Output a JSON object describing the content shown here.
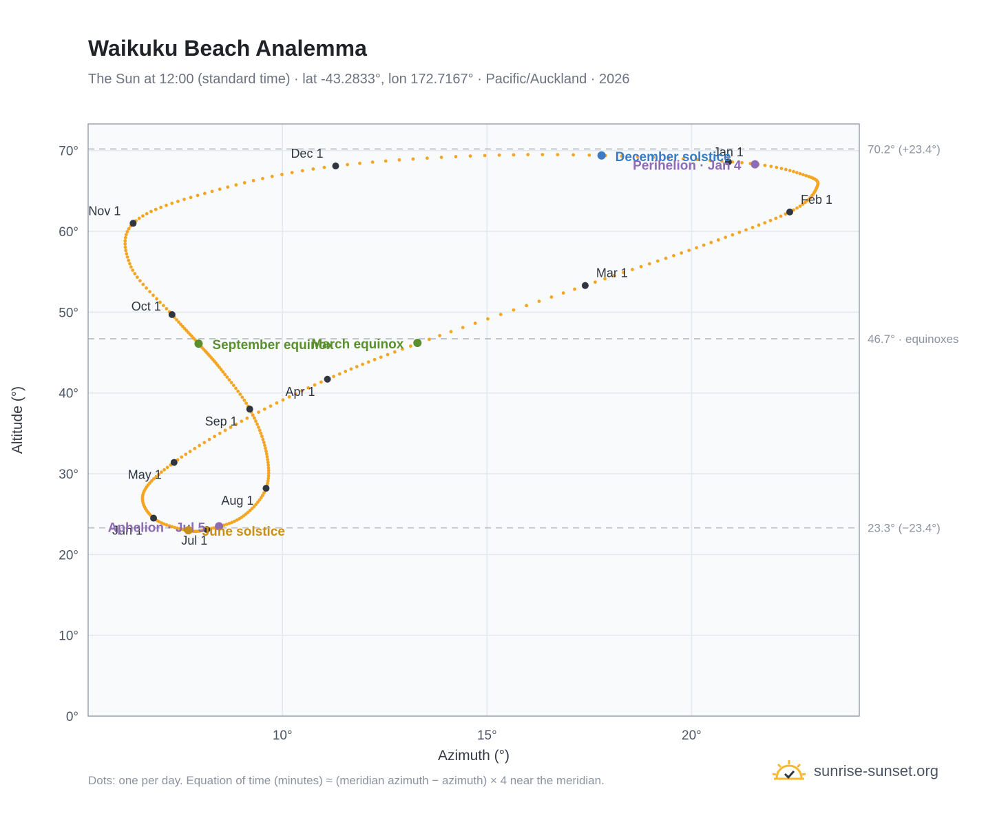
{
  "title": "Waikuku Beach Analemma",
  "subtitle": "The Sun at 12:00 (standard time) · lat -43.2833°, lon 172.7167° · Pacific/Auckland · 2026",
  "footnote": "Dots: one per day. Equation of time (minutes) ≈ (meridian azimuth − azimuth) × 4 near the meridian.",
  "brand": "sunrise-sunset.org",
  "colors": {
    "curve": "#f5a524",
    "month_dot": "#2f3640",
    "december_solstice": "#3b7bc4",
    "june_solstice": "#c79016",
    "equinox": "#5a8f2e",
    "apsis": "#8e6bb5",
    "reference_line": "#b8c0c8",
    "plot_bg": "#f8fafc",
    "grid": "#e3e8ee",
    "frame": "#9aa4b2",
    "axis_text": "#4b5563",
    "ref_text": "#8b93a0"
  },
  "chart_data": {
    "type": "scatter",
    "xlabel": "Azimuth (°)",
    "ylabel": "Altitude (°)",
    "xlim": [
      5.25,
      24.1
    ],
    "ylim": [
      0,
      73.3
    ],
    "xticks": [
      {
        "v": 10,
        "label": "10°"
      },
      {
        "v": 15,
        "label": "15°"
      },
      {
        "v": 20,
        "label": "20°"
      }
    ],
    "yticks": [
      {
        "v": 0,
        "label": "0°"
      },
      {
        "v": 10,
        "label": "10°"
      },
      {
        "v": 20,
        "label": "20°"
      },
      {
        "v": 30,
        "label": "30°"
      },
      {
        "v": 40,
        "label": "40°"
      },
      {
        "v": 50,
        "label": "50°"
      },
      {
        "v": 60,
        "label": "60°"
      },
      {
        "v": 70,
        "label": "70°"
      }
    ],
    "grid": true,
    "reference_lines": [
      {
        "y": 70.2,
        "label": "70.2° (+23.4°)"
      },
      {
        "y": 46.7,
        "label": "46.7° · equinoxes"
      },
      {
        "y": 23.3,
        "label": "23.3° (−23.4°)"
      }
    ],
    "analemma_anchors": [
      {
        "date": "Jan 1",
        "az": 21.0,
        "alt": 68.6
      },
      {
        "date": "Jan 15",
        "az": 22.8,
        "alt": 66.9
      },
      {
        "date": "Jan 22",
        "az": 23.05,
        "alt": 65.3
      },
      {
        "date": "Feb 1",
        "az": 22.4,
        "alt": 62.4
      },
      {
        "date": "Feb 15",
        "az": 20.3,
        "alt": 58.3
      },
      {
        "date": "Mar 1",
        "az": 17.4,
        "alt": 53.3
      },
      {
        "date": "Mar 20",
        "az": 13.35,
        "alt": 46.2
      },
      {
        "date": "Apr 1",
        "az": 11.1,
        "alt": 41.7
      },
      {
        "date": "Apr 15",
        "az": 9.0,
        "alt": 36.5
      },
      {
        "date": "May 1",
        "az": 7.35,
        "alt": 31.4
      },
      {
        "date": "May 15",
        "az": 6.6,
        "alt": 27.6
      },
      {
        "date": "Jun 1",
        "az": 6.85,
        "alt": 24.5
      },
      {
        "date": "Jun 21",
        "az": 7.65,
        "alt": 23.0
      },
      {
        "date": "Jul 1",
        "az": 8.15,
        "alt": 23.1
      },
      {
        "date": "Jul 15",
        "az": 9.0,
        "alt": 24.6
      },
      {
        "date": "Aug 1",
        "az": 9.6,
        "alt": 28.2
      },
      {
        "date": "Aug 15",
        "az": 9.6,
        "alt": 32.8
      },
      {
        "date": "Sep 1",
        "az": 9.2,
        "alt": 38.0
      },
      {
        "date": "Sep 15",
        "az": 8.5,
        "alt": 42.9
      },
      {
        "date": "Sep 23",
        "az": 7.95,
        "alt": 46.1
      },
      {
        "date": "Oct 1",
        "az": 7.3,
        "alt": 49.7
      },
      {
        "date": "Oct 15",
        "az": 6.3,
        "alt": 55.6
      },
      {
        "date": "Nov 1",
        "az": 6.35,
        "alt": 61.0
      },
      {
        "date": "Nov 15",
        "az": 8.1,
        "alt": 64.7
      },
      {
        "date": "Dec 1",
        "az": 11.3,
        "alt": 68.1
      },
      {
        "date": "Dec 21",
        "az": 16.0,
        "alt": 69.5
      },
      {
        "date": "Jan 1",
        "az": 21.0,
        "alt": 68.6
      }
    ],
    "month_markers": [
      {
        "label": "Jan 1",
        "az": 20.9,
        "alt": 68.6,
        "lx": 0,
        "ly": -8,
        "anchor": "middle"
      },
      {
        "label": "Feb 1",
        "az": 22.4,
        "alt": 62.4,
        "lx": 16,
        "ly": -12,
        "anchor": "start"
      },
      {
        "label": "Mar 1",
        "az": 17.4,
        "alt": 53.3,
        "lx": 16,
        "ly": -12,
        "anchor": "start"
      },
      {
        "label": "Apr 1",
        "az": 11.1,
        "alt": 41.7,
        "lx": -18,
        "ly": 24,
        "anchor": "end"
      },
      {
        "label": "May 1",
        "az": 7.35,
        "alt": 31.4,
        "lx": -18,
        "ly": 24,
        "anchor": "end"
      },
      {
        "label": "Jun 1",
        "az": 6.85,
        "alt": 24.5,
        "lx": -16,
        "ly": 24,
        "anchor": "end"
      },
      {
        "label": "Jul 1",
        "az": 8.15,
        "alt": 23.1,
        "lx": -18,
        "ly": 22,
        "anchor": "middle"
      },
      {
        "label": "Aug 1",
        "az": 9.6,
        "alt": 28.2,
        "lx": -18,
        "ly": 24,
        "anchor": "end"
      },
      {
        "label": "Sep 1",
        "az": 9.2,
        "alt": 38.0,
        "lx": -18,
        "ly": 24,
        "anchor": "end"
      },
      {
        "label": "Oct 1",
        "az": 7.3,
        "alt": 49.7,
        "lx": -16,
        "ly": -6,
        "anchor": "end"
      },
      {
        "label": "Nov 1",
        "az": 6.35,
        "alt": 61.0,
        "lx": -18,
        "ly": -12,
        "anchor": "end"
      },
      {
        "label": "Dec 1",
        "az": 11.3,
        "alt": 68.1,
        "lx": -18,
        "ly": -12,
        "anchor": "end"
      }
    ],
    "events": [
      {
        "label": "December solstice",
        "az": 17.8,
        "alt": 69.4,
        "color_key": "december_solstice",
        "lx": 20,
        "ly": 8,
        "anchor": "start"
      },
      {
        "label": "Perihelion · Jan 4",
        "az": 21.55,
        "alt": 68.3,
        "color_key": "apsis",
        "lx": -20,
        "ly": 8,
        "anchor": "end"
      },
      {
        "label": "March equinox",
        "az": 13.3,
        "alt": 46.2,
        "color_key": "equinox",
        "lx": -20,
        "ly": 8,
        "anchor": "end"
      },
      {
        "label": "September equinox",
        "az": 7.95,
        "alt": 46.1,
        "color_key": "equinox",
        "lx": 20,
        "ly": 8,
        "anchor": "start"
      },
      {
        "label": "Aphelion · Jul 5",
        "az": 8.45,
        "alt": 23.5,
        "color_key": "apsis",
        "lx": -20,
        "ly": 8,
        "anchor": "end"
      },
      {
        "label": "June solstice",
        "az": 7.7,
        "alt": 23.0,
        "color_key": "june_solstice",
        "lx": 20,
        "ly": 8,
        "anchor": "start"
      }
    ]
  }
}
